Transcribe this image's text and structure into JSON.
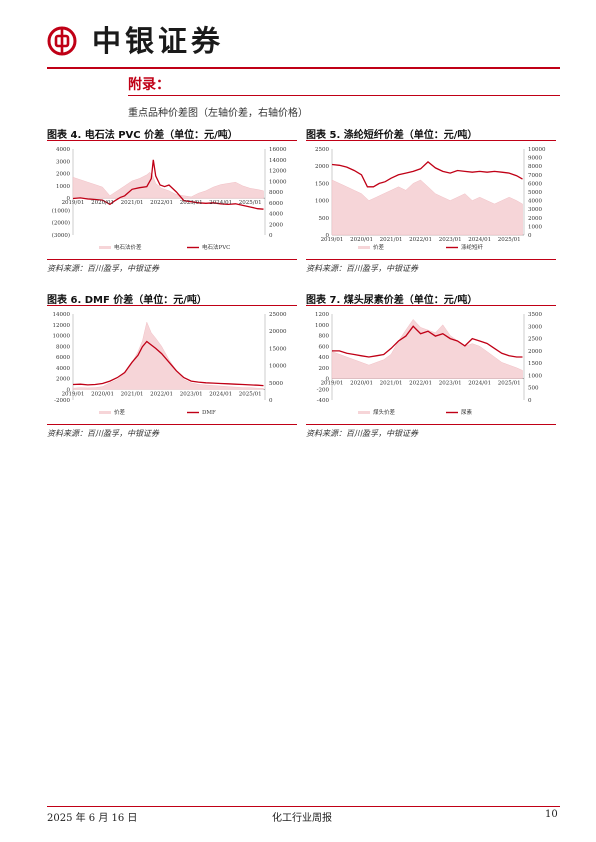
{
  "header": {
    "brand": "中银证券"
  },
  "appendix": {
    "title": "附录：",
    "subtitle": "重点品种价差图（左轴价差，右轴价格）"
  },
  "colors": {
    "accent": "#c00016",
    "spread_fill": "#f6d5d8",
    "price_line": "#c00016"
  },
  "figures": [
    {
      "title": "图表 4. 电石法 PVC 价差（单位：元/吨）",
      "source": "资料来源：百川盈孚，中银证券"
    },
    {
      "title": "图表 5. 涤纶短纤价差（单位：元/吨）",
      "source": "资料来源：百川盈孚，中银证券"
    },
    {
      "title": "图表 6. DMF 价差（单位：元/吨）",
      "source": "资料来源：百川盈孚，中银证券"
    },
    {
      "title": "图表 7. 煤头尿素价差（单位：元/吨）",
      "source": "资料来源：百川盈孚，中银证券"
    }
  ],
  "footer": {
    "date": "2025 年 6 月 16 日",
    "report": "化工行业周报",
    "page": "10"
  },
  "chart_data": [
    {
      "type": "area",
      "x_ticks": [
        "2019/01",
        "2020/01",
        "2021/01",
        "2022/01",
        "2023/01",
        "2024/01",
        "2025/01"
      ],
      "y_left_ticks": [
        "4000",
        "3000",
        "2000",
        "1000",
        "0",
        "(1000)",
        "(2000)",
        "(3000)"
      ],
      "y_left_range": [
        -3000,
        4000
      ],
      "y_right_ticks": [
        "16000",
        "14000",
        "12000",
        "10000",
        "8000",
        "6000",
        "4000",
        "2000",
        "0"
      ],
      "y_right_range": [
        0,
        16000
      ],
      "series": [
        {
          "name": "电石法价差",
          "axis": "left",
          "style": "area",
          "x": [
            2019.0,
            2019.25,
            2019.5,
            2019.75,
            2020.0,
            2020.25,
            2020.5,
            2020.75,
            2021.0,
            2021.25,
            2021.5,
            2021.6,
            2021.7,
            2021.8,
            2022.0,
            2022.25,
            2022.5,
            2022.75,
            2023.0,
            2023.25,
            2023.5,
            2023.75,
            2024.0,
            2024.25,
            2024.5,
            2024.75,
            2025.0,
            2025.25,
            2025.45
          ],
          "values": [
            1700,
            1500,
            1300,
            1100,
            900,
            200,
            600,
            1000,
            1400,
            1600,
            1900,
            2100,
            1800,
            1200,
            800,
            600,
            300,
            200,
            100,
            400,
            600,
            900,
            1100,
            1200,
            1300,
            1000,
            800,
            700,
            600
          ]
        },
        {
          "name": "电石法PVC",
          "axis": "right",
          "style": "line",
          "x": [
            2019.0,
            2019.25,
            2019.5,
            2019.75,
            2020.0,
            2020.25,
            2020.4,
            2020.6,
            2020.75,
            2021.0,
            2021.25,
            2021.5,
            2021.65,
            2021.72,
            2021.8,
            2021.95,
            2022.1,
            2022.25,
            2022.5,
            2022.75,
            2023.0,
            2023.25,
            2023.5,
            2023.75,
            2024.0,
            2024.25,
            2024.5,
            2024.75,
            2025.0,
            2025.25,
            2025.45
          ],
          "values": [
            6800,
            6900,
            6700,
            6600,
            6500,
            5700,
            6300,
            7000,
            7300,
            8500,
            8800,
            9000,
            10500,
            14000,
            11000,
            9300,
            9000,
            9300,
            8000,
            6400,
            6200,
            6000,
            5900,
            6000,
            5800,
            5700,
            5800,
            5500,
            5200,
            4900,
            4800
          ]
        }
      ]
    },
    {
      "type": "area",
      "x_ticks": [
        "2019/01",
        "2020/01",
        "2021/01",
        "2022/01",
        "2023/01",
        "2024/01",
        "2025/01"
      ],
      "y_left_ticks": [
        "2500",
        "2000",
        "1500",
        "1000",
        "500",
        "0"
      ],
      "y_left_range": [
        0,
        2500
      ],
      "y_right_ticks": [
        "10000",
        "9000",
        "8000",
        "7000",
        "6000",
        "5000",
        "4000",
        "3000",
        "2000",
        "1000",
        "0"
      ],
      "y_right_range": [
        0,
        10000
      ],
      "series": [
        {
          "name": "价差",
          "axis": "left",
          "style": "area",
          "x": [
            2019.0,
            2019.25,
            2019.5,
            2019.75,
            2020.0,
            2020.25,
            2020.5,
            2020.75,
            2021.0,
            2021.25,
            2021.5,
            2021.75,
            2022.0,
            2022.25,
            2022.5,
            2022.75,
            2023.0,
            2023.25,
            2023.5,
            2023.75,
            2024.0,
            2024.25,
            2024.5,
            2024.75,
            2025.0,
            2025.25,
            2025.45
          ],
          "values": [
            1600,
            1500,
            1400,
            1300,
            1200,
            1000,
            1100,
            1200,
            1300,
            1400,
            1300,
            1500,
            1600,
            1400,
            1200,
            1100,
            1000,
            1100,
            1200,
            1000,
            1100,
            1000,
            900,
            1000,
            1100,
            1000,
            900
          ]
        },
        {
          "name": "涤纶短纤",
          "axis": "right",
          "style": "line",
          "x": [
            2019.0,
            2019.25,
            2019.5,
            2019.75,
            2020.0,
            2020.2,
            2020.4,
            2020.6,
            2020.8,
            2021.0,
            2021.25,
            2021.5,
            2021.75,
            2022.0,
            2022.25,
            2022.5,
            2022.75,
            2023.0,
            2023.25,
            2023.5,
            2023.75,
            2024.0,
            2024.25,
            2024.5,
            2024.75,
            2025.0,
            2025.25,
            2025.45
          ],
          "values": [
            8200,
            8100,
            7900,
            7500,
            7000,
            5600,
            5600,
            6000,
            6200,
            6600,
            7000,
            7200,
            7400,
            7700,
            8500,
            7800,
            7400,
            7200,
            7500,
            7400,
            7300,
            7400,
            7300,
            7400,
            7300,
            7200,
            6900,
            6500
          ]
        }
      ]
    },
    {
      "type": "area",
      "x_ticks": [
        "2019/01",
        "2020/01",
        "2021/01",
        "2022/01",
        "2023/01",
        "2024/01",
        "2025/01"
      ],
      "y_left_ticks": [
        "14000",
        "12000",
        "10000",
        "8000",
        "6000",
        "4000",
        "2000",
        "0",
        "-2000"
      ],
      "y_left_range": [
        -2000,
        14000
      ],
      "y_right_ticks": [
        "25000",
        "20000",
        "15000",
        "10000",
        "5000",
        "0"
      ],
      "y_right_range": [
        0,
        25000
      ],
      "series": [
        {
          "name": "价差",
          "axis": "left",
          "style": "area",
          "x": [
            2019.0,
            2019.25,
            2019.5,
            2019.75,
            2020.0,
            2020.25,
            2020.5,
            2020.75,
            2021.0,
            2021.2,
            2021.35,
            2021.5,
            2021.65,
            2021.8,
            2022.0,
            2022.25,
            2022.5,
            2022.75,
            2023.0,
            2023.25,
            2023.5,
            2023.75,
            2024.0,
            2024.25,
            2024.5,
            2024.75,
            2025.0,
            2025.25,
            2025.45
          ],
          "values": [
            200,
            300,
            250,
            300,
            500,
            1200,
            1800,
            3000,
            5000,
            7000,
            9000,
            12500,
            10500,
            9500,
            8000,
            5500,
            3500,
            1800,
            1200,
            900,
            800,
            700,
            600,
            500,
            400,
            300,
            300,
            200,
            150
          ]
        },
        {
          "name": "DMF",
          "axis": "right",
          "style": "line",
          "x": [
            2019.0,
            2019.25,
            2019.5,
            2019.75,
            2020.0,
            2020.25,
            2020.5,
            2020.75,
            2021.0,
            2021.2,
            2021.35,
            2021.5,
            2021.65,
            2021.8,
            2022.0,
            2022.25,
            2022.5,
            2022.75,
            2023.0,
            2023.25,
            2023.5,
            2023.75,
            2024.0,
            2024.25,
            2024.5,
            2024.75,
            2025.0,
            2025.25,
            2025.45
          ],
          "values": [
            4500,
            4600,
            4400,
            4500,
            4800,
            5500,
            6500,
            8000,
            11000,
            13000,
            15500,
            17000,
            16000,
            15000,
            13500,
            11000,
            8500,
            6500,
            5500,
            5200,
            5000,
            4900,
            4800,
            4700,
            4600,
            4500,
            4400,
            4300,
            4200
          ]
        }
      ]
    },
    {
      "type": "area",
      "x_ticks": [
        "2019/01",
        "2020/01",
        "2021/01",
        "2022/01",
        "2023/01",
        "2024/01",
        "2025/01"
      ],
      "y_left_ticks": [
        "1200",
        "1000",
        "800",
        "600",
        "400",
        "200",
        "0",
        "-200",
        "-400"
      ],
      "y_left_range": [
        -400,
        1200
      ],
      "y_right_ticks": [
        "3500",
        "3000",
        "2500",
        "2000",
        "1500",
        "1000",
        "500",
        "0"
      ],
      "y_right_range": [
        0,
        3500
      ],
      "series": [
        {
          "name": "煤头价差",
          "axis": "left",
          "style": "area",
          "x": [
            2019.0,
            2019.25,
            2019.5,
            2019.75,
            2020.0,
            2020.25,
            2020.5,
            2020.75,
            2021.0,
            2021.25,
            2021.5,
            2021.75,
            2022.0,
            2022.25,
            2022.5,
            2022.75,
            2023.0,
            2023.25,
            2023.5,
            2023.75,
            2024.0,
            2024.25,
            2024.5,
            2024.75,
            2025.0,
            2025.25,
            2025.45
          ],
          "values": [
            500,
            450,
            400,
            350,
            300,
            250,
            300,
            350,
            450,
            700,
            900,
            1100,
            950,
            900,
            850,
            1000,
            800,
            700,
            600,
            650,
            600,
            500,
            400,
            300,
            250,
            200,
            150
          ]
        },
        {
          "name": "尿素",
          "axis": "right",
          "style": "line",
          "x": [
            2019.0,
            2019.25,
            2019.5,
            2019.75,
            2020.0,
            2020.25,
            2020.5,
            2020.75,
            2021.0,
            2021.25,
            2021.5,
            2021.75,
            2022.0,
            2022.25,
            2022.5,
            2022.75,
            2023.0,
            2023.25,
            2023.5,
            2023.75,
            2024.0,
            2024.25,
            2024.5,
            2024.75,
            2025.0,
            2025.25,
            2025.45
          ],
          "values": [
            2000,
            2000,
            1900,
            1850,
            1800,
            1750,
            1800,
            1850,
            2100,
            2400,
            2600,
            3000,
            2700,
            2800,
            2600,
            2700,
            2500,
            2400,
            2200,
            2500,
            2400,
            2300,
            2100,
            1900,
            1800,
            1750,
            1750
          ]
        }
      ]
    }
  ]
}
